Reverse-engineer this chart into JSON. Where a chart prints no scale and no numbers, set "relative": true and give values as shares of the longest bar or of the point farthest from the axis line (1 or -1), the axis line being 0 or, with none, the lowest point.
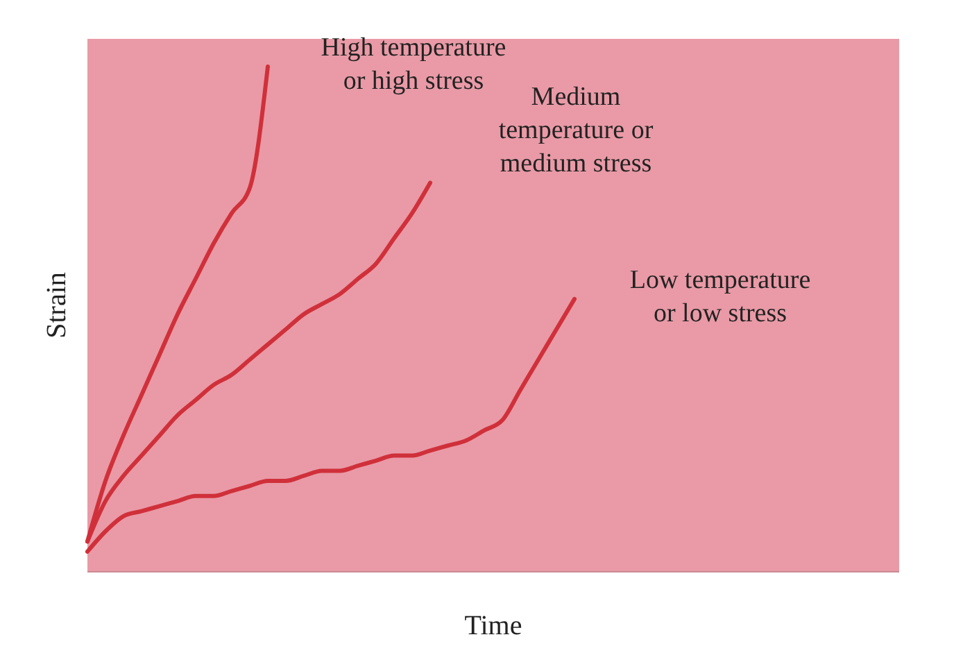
{
  "chart_data": {
    "type": "line",
    "relative": true,
    "xlabel": "Time",
    "ylabel": "Strain",
    "grid": false,
    "marker": "none",
    "line_style": "solid",
    "categories": [
      null,
      null,
      null,
      null,
      null,
      null,
      null,
      null,
      null,
      null,
      null,
      null,
      null,
      null,
      null,
      null,
      null,
      null,
      null,
      null,
      null,
      null,
      null,
      null,
      null,
      null,
      null,
      null,
      null,
      null,
      null,
      null,
      null,
      null,
      null,
      null,
      null,
      null,
      null,
      null,
      null,
      null,
      null,
      null,
      null,
      null
    ],
    "series": [
      {
        "name": "High temperature or high stress",
        "color": "#d0303a",
        "values": [
          0.06,
          0.18,
          0.27,
          0.35,
          0.43,
          0.51,
          0.58,
          0.65,
          0.71,
          0.76,
          1,
          null,
          null,
          null,
          null,
          null,
          null,
          null,
          null,
          null,
          null,
          null,
          null,
          null,
          null,
          null,
          null,
          null,
          null,
          null,
          null,
          null,
          null,
          null,
          null,
          null,
          null,
          null,
          null,
          null,
          null,
          null,
          null,
          null,
          null,
          null
        ]
      },
      {
        "name": "Medium temperature or medium stress",
        "color": "#d0303a",
        "values": [
          0.06,
          0.14,
          0.19,
          0.23,
          0.27,
          0.31,
          0.34,
          0.37,
          0.39,
          0.42,
          0.45,
          0.48,
          0.51,
          0.53,
          0.55,
          0.58,
          0.61,
          0.66,
          0.71,
          0.77,
          null,
          null,
          null,
          null,
          null,
          null,
          null,
          null,
          null,
          null,
          null,
          null,
          null,
          null,
          null,
          null,
          null,
          null,
          null,
          null,
          null,
          null,
          null,
          null,
          null,
          null
        ]
      },
      {
        "name": "Low temperature or low stress",
        "color": "#d0303a",
        "values": [
          0.04,
          0.08,
          0.11,
          0.12,
          0.13,
          0.14,
          0.15,
          0.15,
          0.16,
          0.17,
          0.18,
          0.18,
          0.19,
          0.2,
          0.2,
          0.21,
          0.22,
          0.23,
          0.23,
          0.24,
          0.25,
          0.26,
          0.28,
          0.3,
          0.36,
          0.42,
          0.48,
          0.54,
          null,
          null,
          null,
          null,
          null,
          null,
          null,
          null,
          null,
          null,
          null,
          null,
          null,
          null,
          null,
          null,
          null,
          null
        ]
      }
    ]
  }
}
